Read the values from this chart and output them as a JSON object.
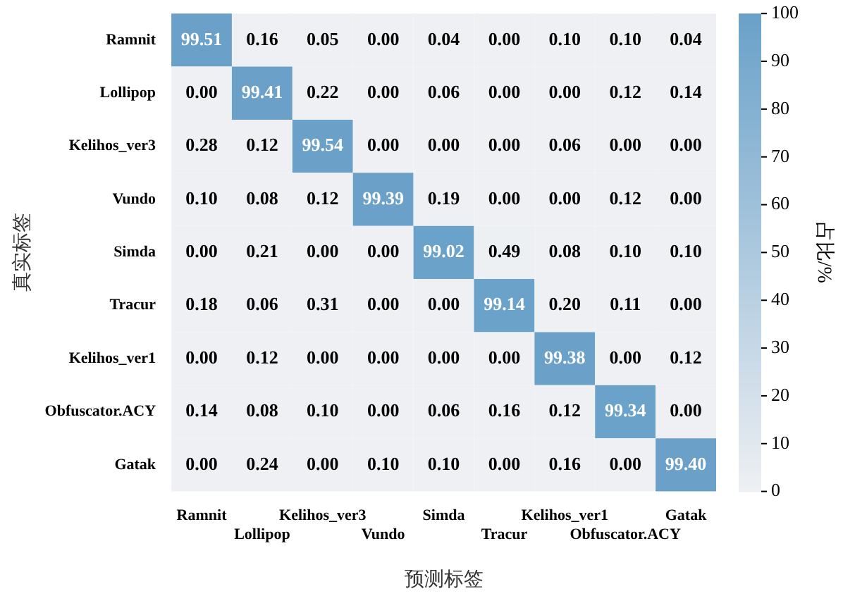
{
  "chart_data": {
    "type": "heatmap",
    "xlabel": "预测标签",
    "ylabel": "真实标签",
    "clabel": "占比/%",
    "categories": [
      "Ramnit",
      "Lollipop",
      "Kelihos_ver3",
      "Vundo",
      "Simda",
      "Tracur",
      "Kelihos_ver1",
      "Obfuscator.ACY",
      "Gatak"
    ],
    "y_categories": [
      "Ramnit",
      "Lollipop",
      "Kelihos_ver3",
      "Vundo",
      "Simda",
      "Tracur",
      "Kelihos_ver1",
      "Obfuscator.ACY",
      "Gatak"
    ],
    "cells": [
      [
        99.51,
        0.16,
        0.05,
        0.0,
        0.04,
        0.0,
        0.1,
        0.1,
        0.04
      ],
      [
        0.0,
        99.41,
        0.22,
        0.0,
        0.06,
        0.0,
        0.0,
        0.12,
        0.14
      ],
      [
        0.28,
        0.12,
        99.54,
        0.0,
        0.0,
        0.0,
        0.06,
        0.0,
        0.0
      ],
      [
        0.1,
        0.08,
        0.12,
        99.39,
        0.19,
        0.0,
        0.0,
        0.12,
        0.0
      ],
      [
        0.0,
        0.21,
        0.0,
        0.0,
        99.02,
        0.49,
        0.08,
        0.1,
        0.1
      ],
      [
        0.18,
        0.06,
        0.31,
        0.0,
        0.0,
        99.14,
        0.2,
        0.11,
        0.0
      ],
      [
        0.0,
        0.12,
        0.0,
        0.0,
        0.0,
        0.0,
        99.38,
        0.0,
        0.12
      ],
      [
        0.14,
        0.08,
        0.1,
        0.0,
        0.06,
        0.16,
        0.12,
        99.34,
        0.0
      ],
      [
        0.0,
        0.24,
        0.0,
        0.1,
        0.1,
        0.0,
        0.16,
        0.0,
        99.4
      ]
    ],
    "cell_labels": [
      [
        "99.51",
        "0.16",
        "0.05",
        "0.00",
        "0.04",
        "0.00",
        "0.10",
        "0.10",
        "0.04"
      ],
      [
        "0.00",
        "99.41",
        "0.22",
        "0.00",
        "0.06",
        "0.00",
        "0.00",
        "0.12",
        "0.14"
      ],
      [
        "0.28",
        "0.12",
        "99.54",
        "0.00",
        "0.00",
        "0.00",
        "0.06",
        "0.00",
        "0.00"
      ],
      [
        "0.10",
        "0.08",
        "0.12",
        "99.39",
        "0.19",
        "0.00",
        "0.00",
        "0.12",
        "0.00"
      ],
      [
        "0.00",
        "0.21",
        "0.00",
        "0.00",
        "99.02",
        "0.49",
        "0.08",
        "0.10",
        "0.10"
      ],
      [
        "0.18",
        "0.06",
        "0.31",
        "0.00",
        "0.00",
        "99.14",
        "0.20",
        "0.11",
        "0.00"
      ],
      [
        "0.00",
        "0.12",
        "0.00",
        "0.00",
        "0.00",
        "0.00",
        "99.38",
        "0.00",
        "0.12"
      ],
      [
        "0.14",
        "0.08",
        "0.10",
        "0.00",
        "0.06",
        "0.16",
        "0.12",
        "99.34",
        "0.00"
      ],
      [
        "0.00",
        "0.24",
        "0.00",
        "0.10",
        "0.10",
        "0.00",
        "0.16",
        "0.00",
        "99.40"
      ]
    ],
    "clim": [
      0,
      100
    ],
    "cticks": [
      0,
      10,
      20,
      30,
      40,
      50,
      60,
      70,
      80,
      90,
      100
    ]
  }
}
